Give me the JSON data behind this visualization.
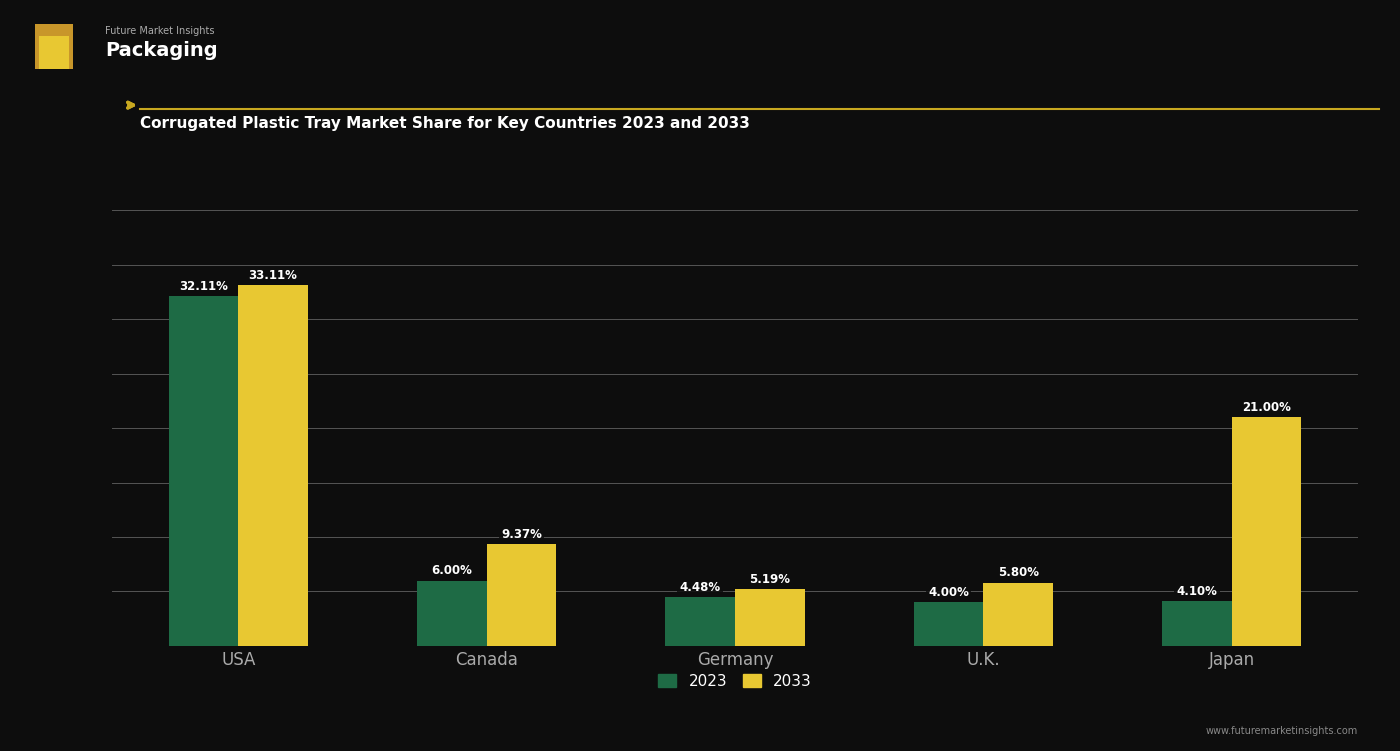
{
  "categories": [
    "USA",
    "Canada",
    "Germany",
    "U.K.",
    "Japan"
  ],
  "values_2023": [
    32.11,
    6.0,
    4.48,
    4.0,
    4.1
  ],
  "values_2033": [
    33.11,
    9.37,
    5.19,
    5.8,
    21.0
  ],
  "color_2023": "#1e6b45",
  "color_2033": "#e8c832",
  "background_color": "#0d0d0d",
  "grid_color": "#555555",
  "text_color": "#ffffff",
  "label_color": "#aaaaaa",
  "title_line_color": "#c8a820",
  "bar_width": 0.28,
  "ylim": [
    0,
    40
  ],
  "yticks": [
    5,
    10,
    15,
    20,
    25,
    30,
    35,
    40
  ],
  "legend_2023": "2023",
  "legend_2033": "2033",
  "logo_text": "Packaging",
  "subtitle": "Corrugated Plastic Tray Market Share for Key Countries 2023 and 2033",
  "source_text": "www.futuremarketinsights.com"
}
